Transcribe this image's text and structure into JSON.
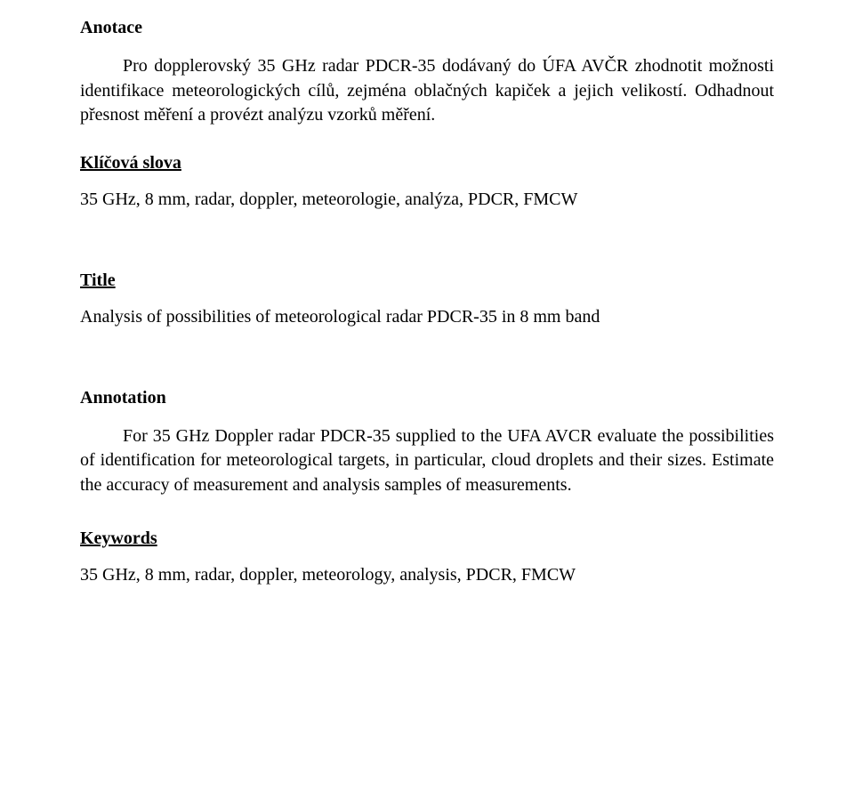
{
  "anotace": {
    "heading": "Anotace",
    "body": "Pro dopplerovský 35 GHz radar PDCR-35 dodávaný do ÚFA AVČR zhodnotit možnosti identifikace meteorologických cílů, zejména oblačných kapiček a jejich velikostí. Odhadnout přesnost měření a provézt analýzu vzorků měření."
  },
  "klicova": {
    "heading": "Klíčová slova",
    "line": "35 GHz, 8 mm, radar, doppler, meteorologie, analýza, PDCR, FMCW"
  },
  "title": {
    "heading": "Title",
    "line": "Analysis of possibilities of meteorological radar PDCR-35 in 8 mm band"
  },
  "annotation": {
    "heading": "Annotation",
    "body": "For 35 GHz Doppler radar PDCR-35 supplied to the UFA AVCR evaluate the possibilities of identification for meteorological targets, in particular, cloud droplets and their sizes. Estimate the accuracy of measurement and analysis samples of measurements."
  },
  "keywords": {
    "heading": "Keywords",
    "line": "35 GHz, 8 mm, radar, doppler, meteorology, analysis, PDCR, FMCW"
  }
}
